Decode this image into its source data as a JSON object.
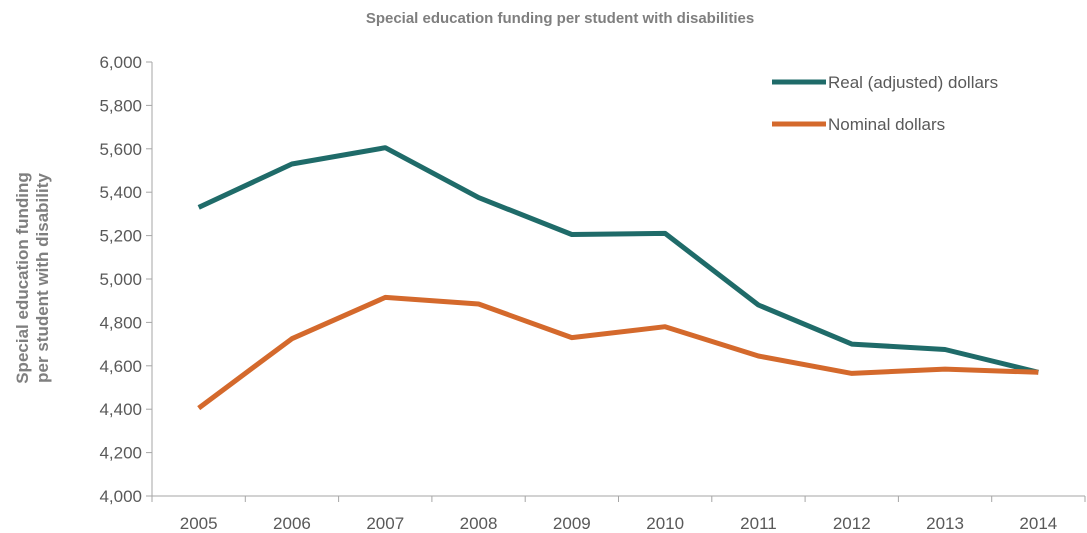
{
  "chart_data": {
    "type": "line",
    "title": "Special education funding per student with disabilities",
    "xlabel": "",
    "ylabel_lines": [
      "Special education funding",
      "per student with disability"
    ],
    "categories": [
      "2005",
      "2006",
      "2007",
      "2008",
      "2009",
      "2010",
      "2011",
      "2012",
      "2013",
      "2014"
    ],
    "ylim": [
      4000,
      6000
    ],
    "yticks": [
      4000,
      4200,
      4400,
      4600,
      4800,
      5000,
      5200,
      5400,
      5600,
      5800,
      6000
    ],
    "ytick_labels": [
      "4,000",
      "4,200",
      "4,400",
      "4,600",
      "4,800",
      "5,000",
      "5,200",
      "5,400",
      "5,600",
      "5,800",
      "6,000"
    ],
    "grid": false,
    "legend_position": "top-right",
    "series": [
      {
        "name": "Real (adjusted) dollars",
        "color": "#1f6b69",
        "values": [
          5330,
          5530,
          5605,
          5375,
          5205,
          5210,
          4880,
          4700,
          4675,
          4570
        ]
      },
      {
        "name": "Nominal dollars",
        "color": "#d4692c",
        "values": [
          4405,
          4725,
          4915,
          4885,
          4730,
          4780,
          4645,
          4565,
          4585,
          4570
        ]
      }
    ]
  }
}
